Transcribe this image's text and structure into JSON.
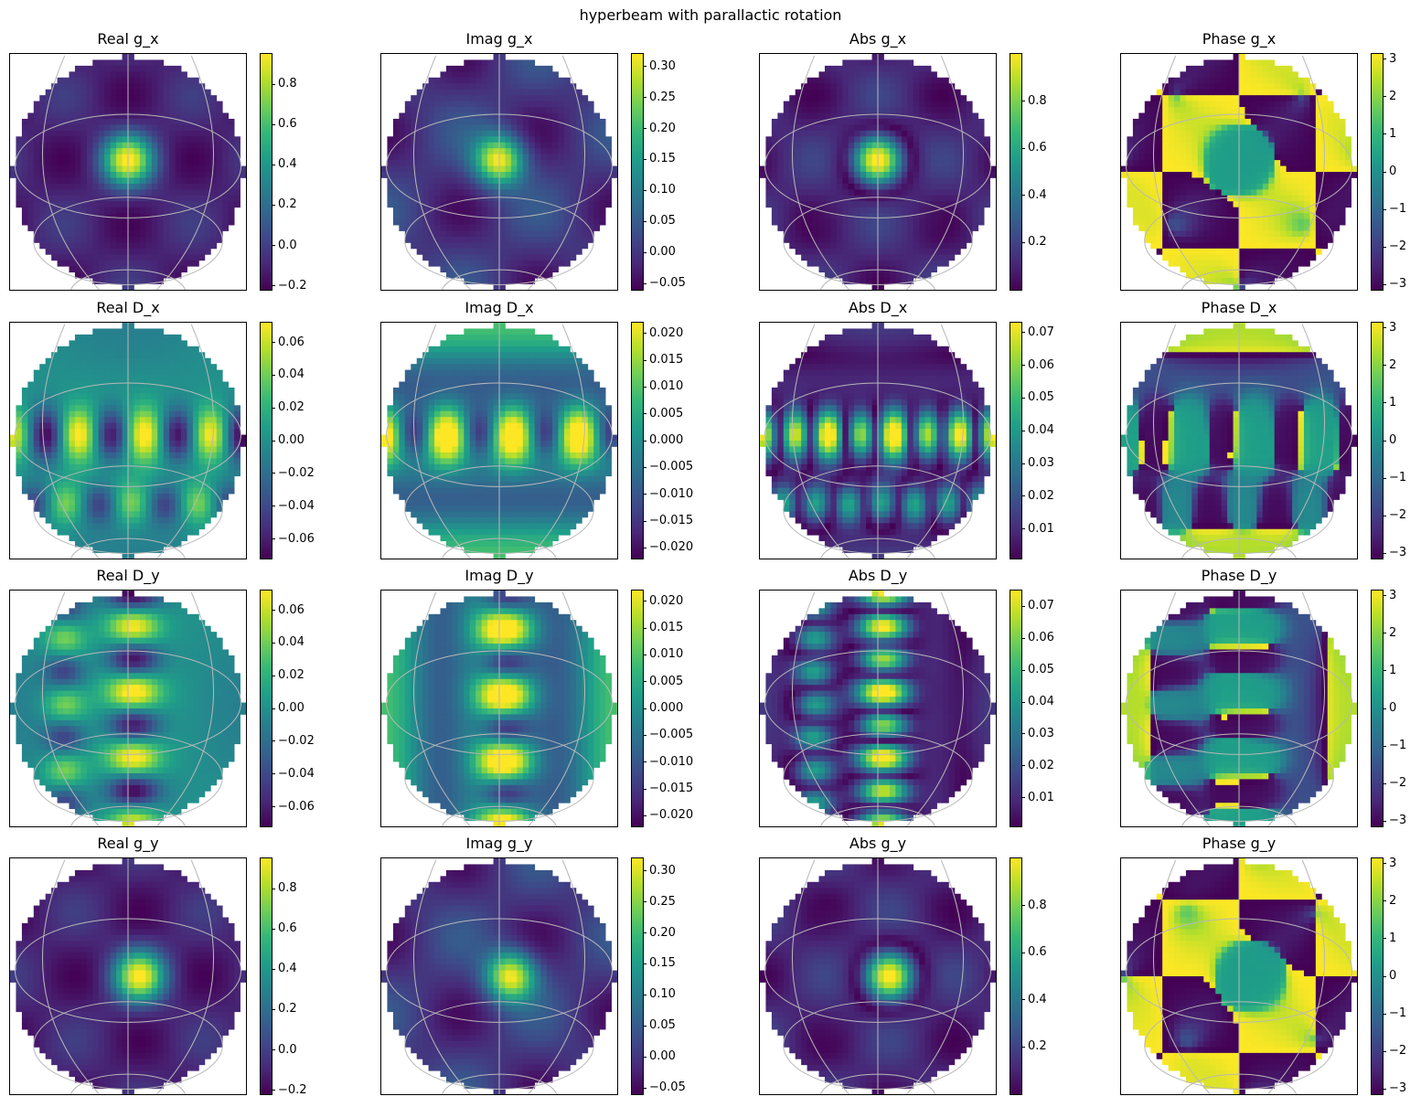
{
  "figure": {
    "title": "hyperbeam with parallactic rotation"
  },
  "colormap": [
    "#440154",
    "#482878",
    "#3e4989",
    "#31688e",
    "#26828e",
    "#1f9e89",
    "#35b779",
    "#6ece58",
    "#b5de2b",
    "#fde725"
  ],
  "chart_data": [
    {
      "type": "heatmap",
      "title": "Real g_x",
      "pattern": "g",
      "component": "real",
      "orient": "x",
      "range": [
        -0.22,
        0.95
      ],
      "colorbar_ticks": [
        "0.8",
        "0.6",
        "0.4",
        "0.2",
        "0.0",
        "−0.2"
      ],
      "colorbar_tick_values": [
        0.8,
        0.6,
        0.4,
        0.2,
        0.0,
        -0.2
      ]
    },
    {
      "type": "heatmap",
      "title": "Imag g_x",
      "pattern": "g",
      "component": "imag",
      "orient": "x",
      "range": [
        -0.06,
        0.32
      ],
      "colorbar_ticks": [
        "0.30",
        "0.25",
        "0.20",
        "0.15",
        "0.10",
        "0.05",
        "0.00",
        "−0.05"
      ],
      "colorbar_tick_values": [
        0.3,
        0.25,
        0.2,
        0.15,
        0.1,
        0.05,
        0.0,
        -0.05
      ]
    },
    {
      "type": "heatmap",
      "title": "Abs g_x",
      "pattern": "g",
      "component": "abs",
      "orient": "x",
      "range": [
        0.0,
        1.0
      ],
      "colorbar_ticks": [
        "0.8",
        "0.6",
        "0.4",
        "0.2"
      ],
      "colorbar_tick_values": [
        0.8,
        0.6,
        0.4,
        0.2
      ]
    },
    {
      "type": "heatmap",
      "title": "Phase g_x",
      "pattern": "g",
      "component": "phase",
      "orient": "x",
      "range": [
        -3.14,
        3.14
      ],
      "colorbar_ticks": [
        "3",
        "2",
        "1",
        "0",
        "−1",
        "−2",
        "−3"
      ],
      "colorbar_tick_values": [
        3,
        2,
        1,
        0,
        -1,
        -2,
        -3
      ]
    },
    {
      "type": "heatmap",
      "title": "Real D_x",
      "pattern": "d",
      "component": "real",
      "orient": "x",
      "range": [
        -0.072,
        0.072
      ],
      "colorbar_ticks": [
        "0.06",
        "0.04",
        "0.02",
        "0.00",
        "−0.02",
        "−0.04",
        "−0.06"
      ],
      "colorbar_tick_values": [
        0.06,
        0.04,
        0.02,
        0.0,
        -0.02,
        -0.04,
        -0.06
      ]
    },
    {
      "type": "heatmap",
      "title": "Imag D_x",
      "pattern": "d",
      "component": "imag",
      "orient": "x",
      "range": [
        -0.022,
        0.022
      ],
      "colorbar_ticks": [
        "0.020",
        "0.015",
        "0.010",
        "0.005",
        "0.000",
        "−0.005",
        "−0.010",
        "−0.015",
        "−0.020"
      ],
      "colorbar_tick_values": [
        0.02,
        0.015,
        0.01,
        0.005,
        0.0,
        -0.005,
        -0.01,
        -0.015,
        -0.02
      ]
    },
    {
      "type": "heatmap",
      "title": "Abs D_x",
      "pattern": "d",
      "component": "abs",
      "orient": "x",
      "range": [
        0.001,
        0.073
      ],
      "colorbar_ticks": [
        "0.07",
        "0.06",
        "0.05",
        "0.04",
        "0.03",
        "0.02",
        "0.01"
      ],
      "colorbar_tick_values": [
        0.07,
        0.06,
        0.05,
        0.04,
        0.03,
        0.02,
        0.01
      ]
    },
    {
      "type": "heatmap",
      "title": "Phase D_x",
      "pattern": "d",
      "component": "phase",
      "orient": "x",
      "range": [
        -3.14,
        3.14
      ],
      "colorbar_ticks": [
        "3",
        "2",
        "1",
        "0",
        "−1",
        "−2",
        "−3"
      ],
      "colorbar_tick_values": [
        3,
        2,
        1,
        0,
        -1,
        -2,
        -3
      ]
    },
    {
      "type": "heatmap",
      "title": "Real D_y",
      "pattern": "d",
      "component": "real",
      "orient": "y",
      "range": [
        -0.072,
        0.072
      ],
      "colorbar_ticks": [
        "0.06",
        "0.04",
        "0.02",
        "0.00",
        "−0.02",
        "−0.04",
        "−0.06"
      ],
      "colorbar_tick_values": [
        0.06,
        0.04,
        0.02,
        0.0,
        -0.02,
        -0.04,
        -0.06
      ]
    },
    {
      "type": "heatmap",
      "title": "Imag D_y",
      "pattern": "d",
      "component": "imag",
      "orient": "y",
      "range": [
        -0.022,
        0.022
      ],
      "colorbar_ticks": [
        "0.020",
        "0.015",
        "0.010",
        "0.005",
        "0.000",
        "−0.005",
        "−0.010",
        "−0.015",
        "−0.020"
      ],
      "colorbar_tick_values": [
        0.02,
        0.015,
        0.01,
        0.005,
        0.0,
        -0.005,
        -0.01,
        -0.015,
        -0.02
      ]
    },
    {
      "type": "heatmap",
      "title": "Abs D_y",
      "pattern": "d",
      "component": "abs",
      "orient": "y",
      "range": [
        0.001,
        0.075
      ],
      "colorbar_ticks": [
        "0.07",
        "0.06",
        "0.05",
        "0.04",
        "0.03",
        "0.02",
        "0.01"
      ],
      "colorbar_tick_values": [
        0.07,
        0.06,
        0.05,
        0.04,
        0.03,
        0.02,
        0.01
      ]
    },
    {
      "type": "heatmap",
      "title": "Phase D_y",
      "pattern": "d",
      "component": "phase",
      "orient": "y",
      "range": [
        -3.14,
        3.14
      ],
      "colorbar_ticks": [
        "3",
        "2",
        "1",
        "0",
        "−1",
        "−2",
        "−3"
      ],
      "colorbar_tick_values": [
        3,
        2,
        1,
        0,
        -1,
        -2,
        -3
      ]
    },
    {
      "type": "heatmap",
      "title": "Real g_y",
      "pattern": "g",
      "component": "real",
      "orient": "y",
      "range": [
        -0.22,
        0.95
      ],
      "colorbar_ticks": [
        "0.8",
        "0.6",
        "0.4",
        "0.2",
        "0.0",
        "−0.2"
      ],
      "colorbar_tick_values": [
        0.8,
        0.6,
        0.4,
        0.2,
        0.0,
        -0.2
      ]
    },
    {
      "type": "heatmap",
      "title": "Imag g_y",
      "pattern": "g",
      "component": "imag",
      "orient": "y",
      "range": [
        -0.06,
        0.32
      ],
      "colorbar_ticks": [
        "0.30",
        "0.25",
        "0.20",
        "0.15",
        "0.10",
        "0.05",
        "0.00",
        "−0.05"
      ],
      "colorbar_tick_values": [
        0.3,
        0.25,
        0.2,
        0.15,
        0.1,
        0.05,
        0.0,
        -0.05
      ]
    },
    {
      "type": "heatmap",
      "title": "Abs g_y",
      "pattern": "g",
      "component": "abs",
      "orient": "y",
      "range": [
        0.0,
        1.0
      ],
      "colorbar_ticks": [
        "0.8",
        "0.6",
        "0.4",
        "0.2"
      ],
      "colorbar_tick_values": [
        0.8,
        0.6,
        0.4,
        0.2
      ]
    },
    {
      "type": "heatmap",
      "title": "Phase g_y",
      "pattern": "g",
      "component": "phase",
      "orient": "y",
      "range": [
        -3.14,
        3.14
      ],
      "colorbar_ticks": [
        "3",
        "2",
        "1",
        "0",
        "−1",
        "−2",
        "−3"
      ],
      "colorbar_tick_values": [
        3,
        2,
        1,
        0,
        -1,
        -2,
        -3
      ]
    }
  ]
}
